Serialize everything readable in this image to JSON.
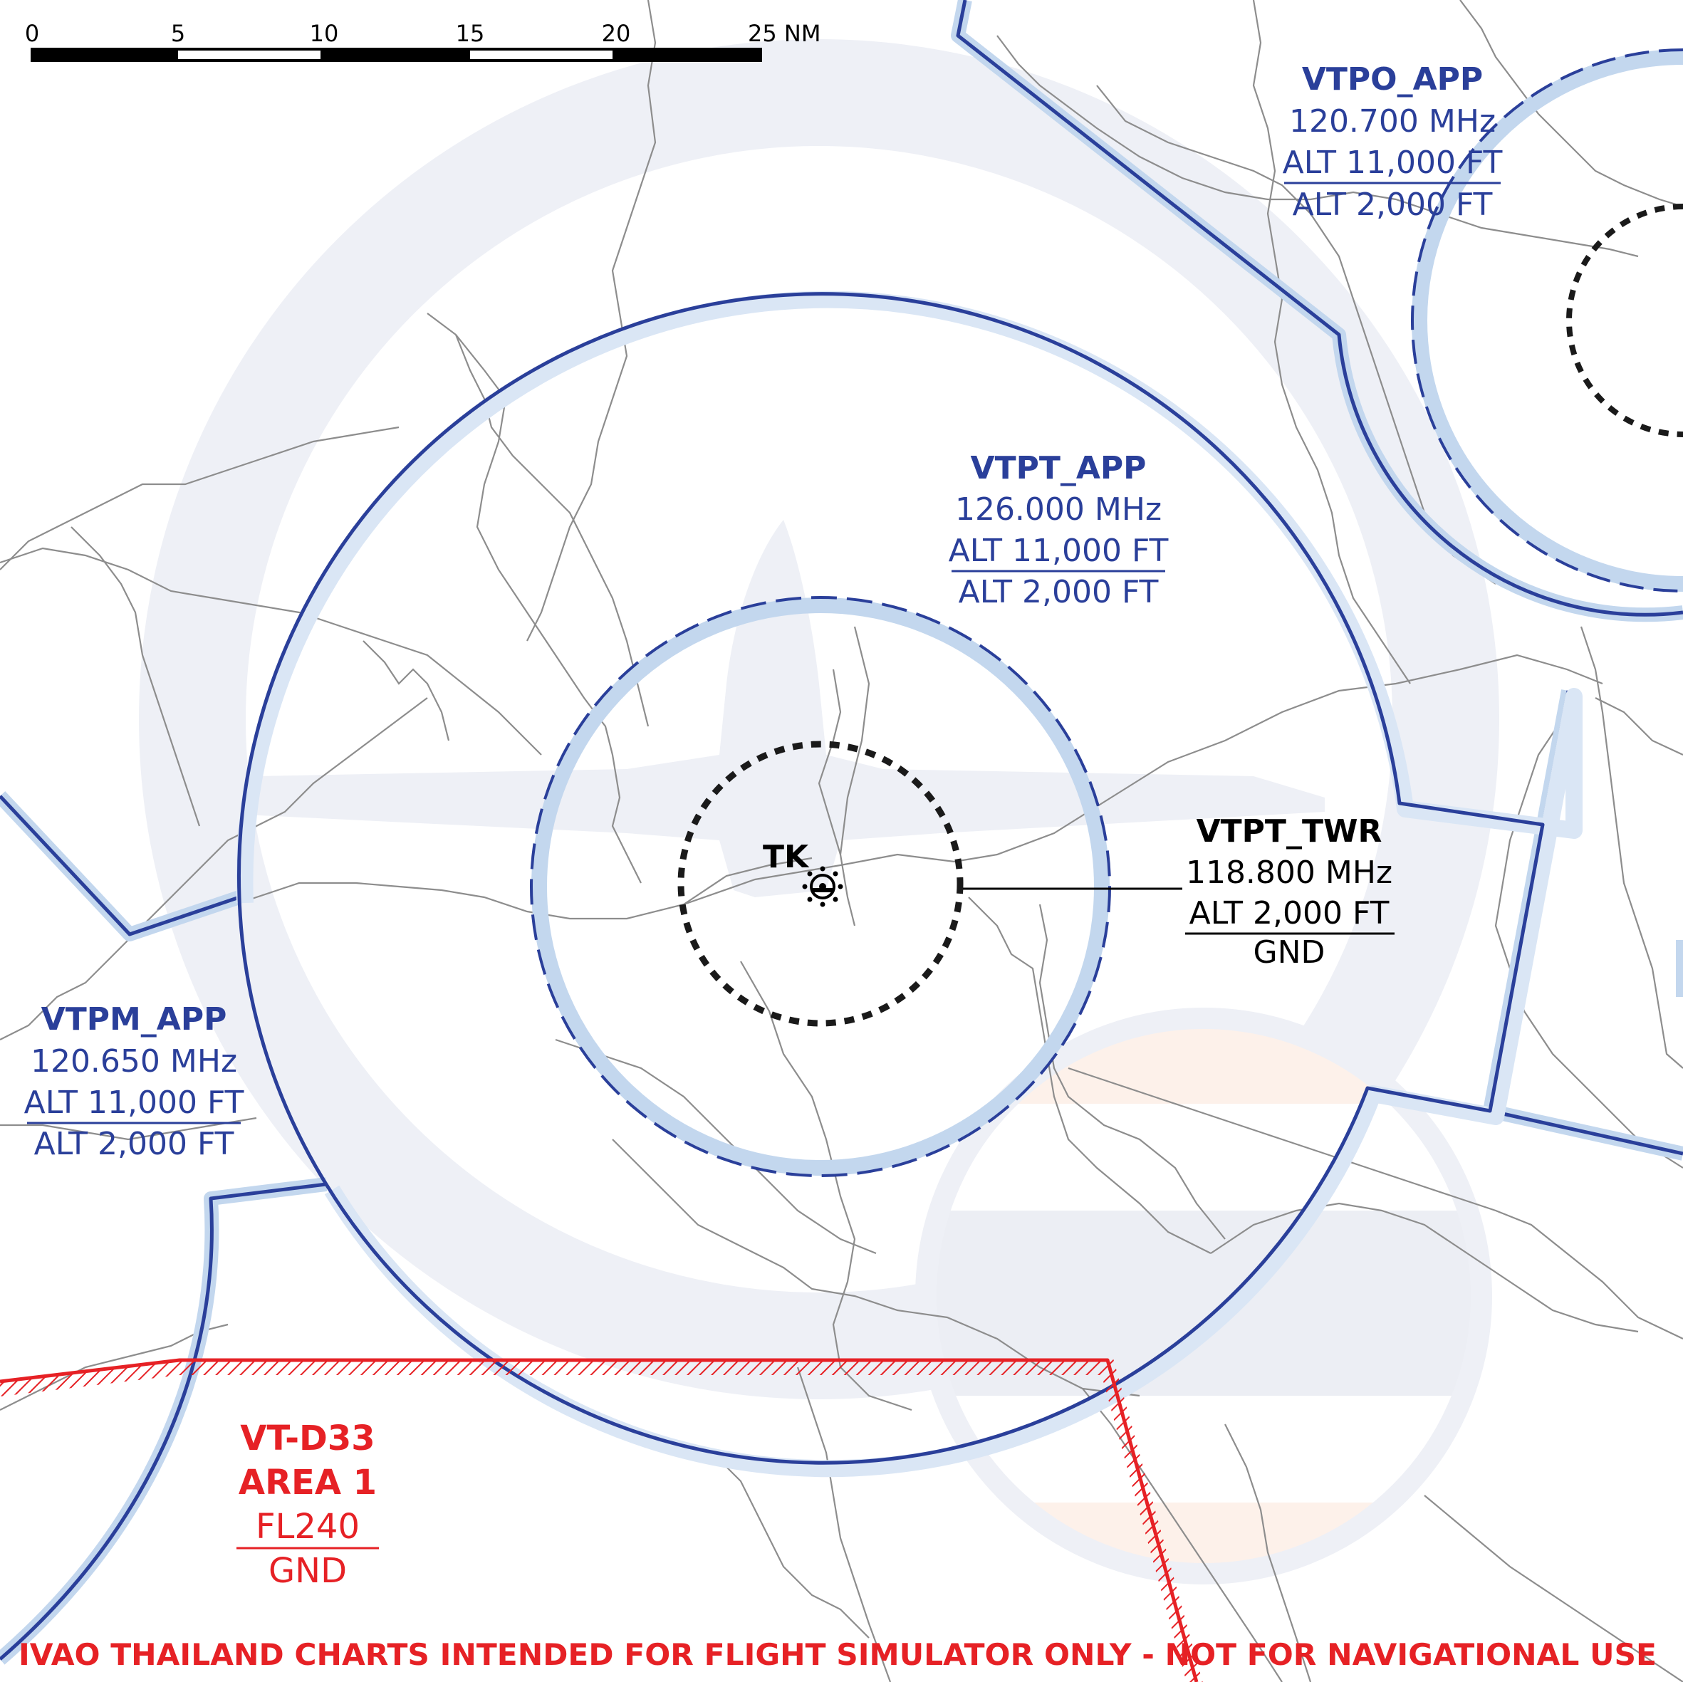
{
  "colors": {
    "airspace_blue": "#2a3f9a",
    "airspace_halo": "#c3d7ee",
    "tower_black": "#1a1a1a",
    "danger_red": "#e62125",
    "roads_gray": "#8d8d8d",
    "watermark": "#eef0f6"
  },
  "scale_bar": {
    "ticks": [
      "0",
      "5",
      "10",
      "15",
      "20",
      "25 NM"
    ]
  },
  "airspaces": {
    "vtpo_app": {
      "name": "VTPO_APP",
      "freq": "120.700 MHz",
      "upper": "ALT 11,000 FT",
      "lower": "ALT 2,000 FT"
    },
    "vtpt_app": {
      "name": "VTPT_APP",
      "freq": "126.000 MHz",
      "upper": "ALT 11,000 FT",
      "lower": "ALT 2,000 FT"
    },
    "vtpt_twr": {
      "name": "VTPT_TWR",
      "freq": "118.800 MHz",
      "upper": "ALT 2,000 FT",
      "lower": "GND"
    },
    "vtpm_app": {
      "name": "VTPM_APP",
      "freq": "120.650 MHz",
      "upper": "ALT 11,000 FT",
      "lower": "ALT 2,000 FT"
    },
    "vt_d33": {
      "name": "VT-D33",
      "sub": "AREA 1",
      "upper": "FL240",
      "lower": "GND"
    }
  },
  "navaid": {
    "ident": "TK",
    "icon": "vor-dme-icon"
  },
  "disclaimer": "IVAO THAILAND CHARTS INTENDED FOR FLIGHT SIMULATOR ONLY - NOT FOR NAVIGATIONAL USE"
}
